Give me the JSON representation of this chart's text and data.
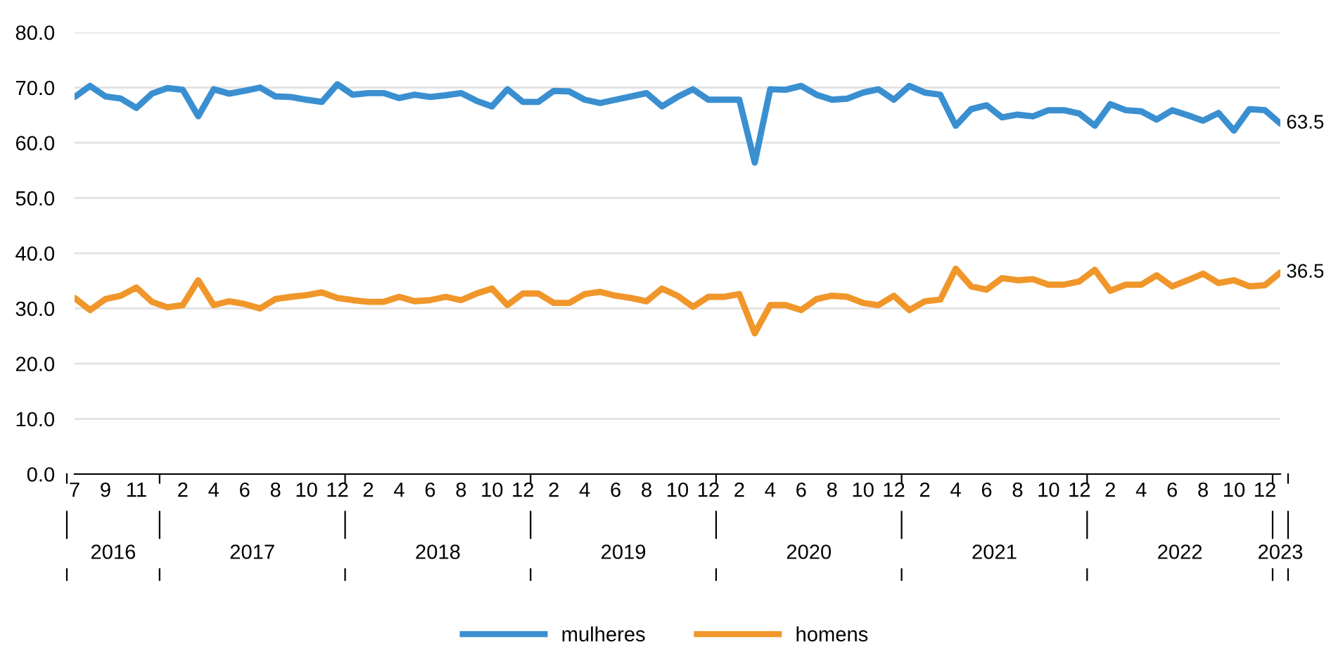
{
  "chart_data": {
    "type": "line",
    "x": [
      "2016-07",
      "2016-08",
      "2016-09",
      "2016-10",
      "2016-11",
      "2016-12",
      "2017-01",
      "2017-02",
      "2017-03",
      "2017-04",
      "2017-05",
      "2017-06",
      "2017-07",
      "2017-08",
      "2017-09",
      "2017-10",
      "2017-11",
      "2017-12",
      "2018-01",
      "2018-02",
      "2018-03",
      "2018-04",
      "2018-05",
      "2018-06",
      "2018-07",
      "2018-08",
      "2018-09",
      "2018-10",
      "2018-11",
      "2018-12",
      "2019-01",
      "2019-02",
      "2019-03",
      "2019-04",
      "2019-05",
      "2019-06",
      "2019-07",
      "2019-08",
      "2019-09",
      "2019-10",
      "2019-11",
      "2019-12",
      "2020-01",
      "2020-02",
      "2020-03",
      "2020-04",
      "2020-05",
      "2020-06",
      "2020-07",
      "2020-08",
      "2020-09",
      "2020-10",
      "2020-11",
      "2020-12",
      "2021-01",
      "2021-02",
      "2021-03",
      "2021-04",
      "2021-05",
      "2021-06",
      "2021-07",
      "2021-08",
      "2021-09",
      "2021-10",
      "2021-11",
      "2021-12",
      "2022-01",
      "2022-02",
      "2022-03",
      "2022-04",
      "2022-05",
      "2022-06",
      "2022-07",
      "2022-08",
      "2022-09",
      "2022-10",
      "2022-11",
      "2022-12",
      "2023-01"
    ],
    "xticks": [
      {
        "value": "2016-07",
        "label": "7"
      },
      {
        "value": "2016-09",
        "label": "9"
      },
      {
        "value": "2016-11",
        "label": "11"
      },
      {
        "value": "2017-02",
        "label": "2"
      },
      {
        "value": "2017-04",
        "label": "4"
      },
      {
        "value": "2017-06",
        "label": "6"
      },
      {
        "value": "2017-08",
        "label": "8"
      },
      {
        "value": "2017-10",
        "label": "10"
      },
      {
        "value": "2017-12",
        "label": "12"
      },
      {
        "value": "2018-02",
        "label": "2"
      },
      {
        "value": "2018-04",
        "label": "4"
      },
      {
        "value": "2018-06",
        "label": "6"
      },
      {
        "value": "2018-08",
        "label": "8"
      },
      {
        "value": "2018-10",
        "label": "10"
      },
      {
        "value": "2018-12",
        "label": "12"
      },
      {
        "value": "2019-02",
        "label": "2"
      },
      {
        "value": "2019-04",
        "label": "4"
      },
      {
        "value": "2019-06",
        "label": "6"
      },
      {
        "value": "2019-08",
        "label": "8"
      },
      {
        "value": "2019-10",
        "label": "10"
      },
      {
        "value": "2019-12",
        "label": "12"
      },
      {
        "value": "2020-02",
        "label": "2"
      },
      {
        "value": "2020-04",
        "label": "4"
      },
      {
        "value": "2020-06",
        "label": "6"
      },
      {
        "value": "2020-08",
        "label": "8"
      },
      {
        "value": "2020-10",
        "label": "10"
      },
      {
        "value": "2020-12",
        "label": "12"
      },
      {
        "value": "2021-02",
        "label": "2"
      },
      {
        "value": "2021-04",
        "label": "4"
      },
      {
        "value": "2021-06",
        "label": "6"
      },
      {
        "value": "2021-08",
        "label": "8"
      },
      {
        "value": "2021-10",
        "label": "10"
      },
      {
        "value": "2021-12",
        "label": "12"
      },
      {
        "value": "2022-02",
        "label": "2"
      },
      {
        "value": "2022-04",
        "label": "4"
      },
      {
        "value": "2022-06",
        "label": "6"
      },
      {
        "value": "2022-08",
        "label": "8"
      },
      {
        "value": "2022-10",
        "label": "10"
      },
      {
        "value": "2022-12",
        "label": "12"
      }
    ],
    "xlim": [
      "2016-07",
      "2023-01"
    ],
    "ylim": [
      0,
      80
    ],
    "yticks": [
      {
        "value": 0,
        "label": "0.0"
      },
      {
        "value": 10,
        "label": "10.0"
      },
      {
        "value": 20,
        "label": "20.0"
      },
      {
        "value": 30,
        "label": "30.0"
      },
      {
        "value": 40,
        "label": "40.0"
      },
      {
        "value": 50,
        "label": "50.0"
      },
      {
        "value": 60,
        "label": "60.0"
      },
      {
        "value": 70,
        "label": "70.0"
      },
      {
        "value": 80,
        "label": "80.0"
      }
    ],
    "grid": "y",
    "legend": "bottom",
    "marker": "none",
    "line_style": "solid",
    "annotations": [
      "2016",
      "2017",
      "2018",
      "2019",
      "2020",
      "2021",
      "2022",
      "2023"
    ],
    "series": [
      {
        "name": "mulheres",
        "color": "#3a8fd0",
        "values": [
          68.3,
          70.3,
          68.4,
          68.0,
          66.3,
          68.9,
          69.9,
          69.6,
          64.8,
          69.7,
          68.9,
          69.4,
          70.0,
          68.4,
          68.3,
          67.8,
          67.4,
          70.6,
          68.7,
          69.0,
          69.0,
          68.1,
          68.7,
          68.3,
          68.6,
          69.0,
          67.6,
          66.6,
          69.7,
          67.4,
          67.4,
          69.4,
          69.3,
          67.8,
          67.2,
          67.8,
          68.4,
          69.0,
          66.6,
          68.3,
          69.7,
          67.8,
          67.8,
          67.8,
          56.4,
          69.7,
          69.6,
          70.3,
          68.7,
          67.8,
          68.0,
          69.1,
          69.7,
          67.8,
          70.3,
          69.1,
          68.7,
          63.1,
          66.1,
          66.8,
          64.6,
          65.1,
          64.8,
          65.9,
          65.9,
          65.3,
          63.1,
          67.0,
          65.9,
          65.7,
          64.2,
          65.9,
          65.0,
          64.0,
          65.4,
          62.2,
          66.1,
          65.9,
          63.5
        ],
        "value_labels": [
          null,
          null,
          null,
          null,
          null,
          null,
          null,
          null,
          null,
          null,
          null,
          null,
          null,
          null,
          null,
          null,
          null,
          null,
          null,
          null,
          null,
          null,
          null,
          null,
          null,
          null,
          null,
          null,
          null,
          null,
          null,
          null,
          null,
          null,
          null,
          null,
          null,
          null,
          null,
          null,
          null,
          null,
          null,
          null,
          null,
          null,
          null,
          null,
          null,
          null,
          null,
          null,
          null,
          null,
          null,
          null,
          null,
          null,
          null,
          null,
          null,
          null,
          null,
          null,
          null,
          null,
          null,
          null,
          null,
          null,
          null,
          null,
          null,
          null,
          null,
          null,
          null,
          null,
          "63.5"
        ]
      },
      {
        "name": "homens",
        "color": "#f0962a",
        "values": [
          31.9,
          29.7,
          31.7,
          32.3,
          33.8,
          31.2,
          30.2,
          30.6,
          35.1,
          30.6,
          31.3,
          30.8,
          30.0,
          31.7,
          32.1,
          32.4,
          32.9,
          31.9,
          31.5,
          31.2,
          31.2,
          32.1,
          31.3,
          31.5,
          32.1,
          31.5,
          32.7,
          33.6,
          30.6,
          32.7,
          32.7,
          31.0,
          31.0,
          32.6,
          33.0,
          32.3,
          31.9,
          31.3,
          33.6,
          32.3,
          30.3,
          32.1,
          32.1,
          32.6,
          25.5,
          30.6,
          30.6,
          29.7,
          31.7,
          32.3,
          32.1,
          31.0,
          30.6,
          32.3,
          29.7,
          31.3,
          31.6,
          37.2,
          34.0,
          33.4,
          35.5,
          35.1,
          35.3,
          34.3,
          34.3,
          34.9,
          37.0,
          33.2,
          34.3,
          34.3,
          36.0,
          34.0,
          35.1,
          36.3,
          34.6,
          35.1,
          34.0,
          34.2,
          36.5
        ],
        "value_labels": [
          null,
          null,
          null,
          null,
          null,
          null,
          null,
          null,
          null,
          null,
          null,
          null,
          null,
          null,
          null,
          null,
          null,
          null,
          null,
          null,
          null,
          null,
          null,
          null,
          null,
          null,
          null,
          null,
          null,
          null,
          null,
          null,
          null,
          null,
          null,
          null,
          null,
          null,
          null,
          null,
          null,
          null,
          null,
          null,
          null,
          null,
          null,
          null,
          null,
          null,
          null,
          null,
          null,
          null,
          null,
          null,
          null,
          null,
          null,
          null,
          null,
          null,
          null,
          null,
          null,
          null,
          null,
          null,
          null,
          null,
          null,
          null,
          null,
          null,
          null,
          null,
          null,
          null,
          "36.5"
        ]
      }
    ]
  }
}
